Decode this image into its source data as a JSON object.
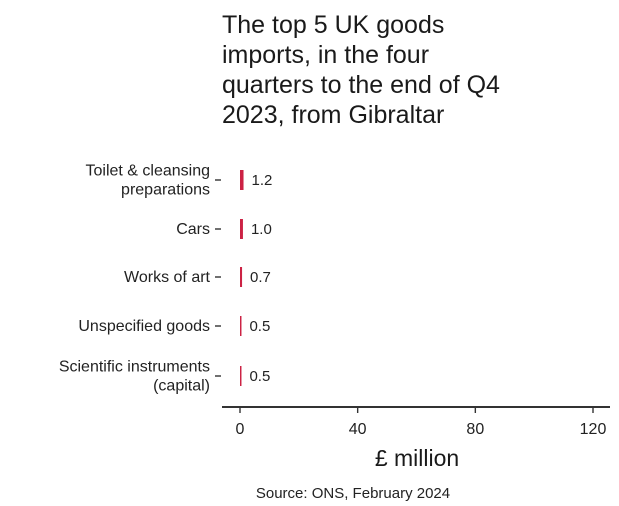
{
  "chart_data": {
    "type": "bar",
    "orientation": "horizontal",
    "title_lines": [
      "The top 5 UK goods",
      "imports, in the four",
      "quarters to the end of Q4",
      "2023, from Gibraltar"
    ],
    "categories": [
      [
        "Toilet & cleansing",
        "preparations"
      ],
      [
        "Cars"
      ],
      [
        "Works of art"
      ],
      [
        "Unspecified goods"
      ],
      [
        "Scientific instruments",
        "(capital)"
      ]
    ],
    "values": [
      1.2,
      1.0,
      0.7,
      0.5,
      0.5
    ],
    "value_labels": [
      "1.2",
      "1.0",
      "0.7",
      "0.5",
      "0.5"
    ],
    "xlabel": "£ million",
    "xlim": [
      0,
      130
    ],
    "xticks": [
      0,
      40,
      80,
      120
    ],
    "grid": false,
    "source": "Source: ONS, February 2024",
    "colors": {
      "bar": "#cc2244",
      "axis": "#333333",
      "text": "#222222"
    }
  }
}
